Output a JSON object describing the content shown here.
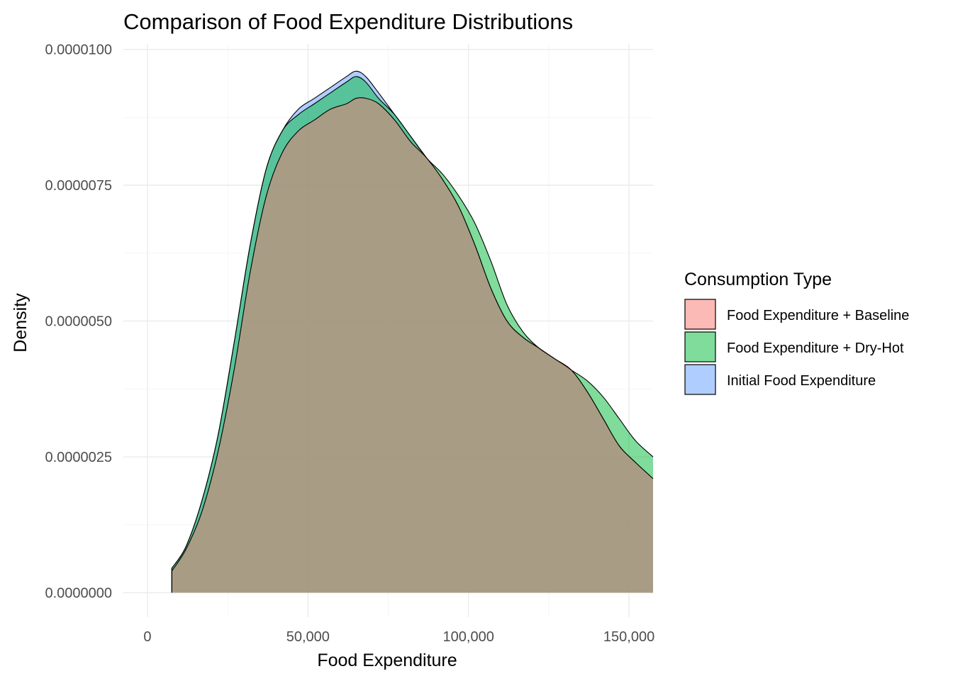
{
  "chart_data": {
    "type": "area",
    "subtype": "density",
    "title": "Comparison of Food Expenditure Distributions",
    "xlabel": "Food Expenditure",
    "ylabel": "Density",
    "xlim": [
      -7500,
      157500
    ],
    "ylim": [
      -4.5e-07,
      1.01e-05
    ],
    "x_ticks": [
      0,
      50000,
      100000,
      150000
    ],
    "x_tick_labels": [
      "0",
      "50,000",
      "100,000",
      "150,000"
    ],
    "y_ticks": [
      0,
      2.5e-06,
      5e-06,
      7.5e-06,
      1e-05
    ],
    "y_tick_labels": [
      "0.0000000",
      "0.0000025",
      "0.0000050",
      "0.0000075",
      "0.0000100"
    ],
    "grid": true,
    "legend": {
      "title": "Consumption Type",
      "position": "right"
    },
    "fill_opacity": 0.5,
    "series": [
      {
        "name": "Initial Food Expenditure",
        "color": "#619CFF",
        "x": [
          7600,
          12000,
          17000,
          22000,
          27000,
          32000,
          37000,
          42000,
          47000,
          52000,
          57000,
          62000,
          65000,
          68000,
          72000,
          77000,
          82000,
          87000,
          92000,
          97000,
          102000,
          107000,
          112000,
          117000,
          122000,
          127000,
          132000,
          137000,
          142000,
          147000,
          152000,
          157500
        ],
        "y": [
          4.5e-07,
          8.5e-07,
          1.7e-06,
          2.9e-06,
          4.6e-06,
          6.4e-06,
          7.8e-06,
          8.5e-06,
          8.9e-06,
          9.1e-06,
          9.3e-06,
          9.5e-06,
          9.6e-06,
          9.5e-06,
          9.2e-06,
          8.8e-06,
          8.4e-06,
          8e-06,
          7.6e-06,
          7.1e-06,
          6.4e-06,
          5.6e-06,
          5e-06,
          4.7e-06,
          4.5e-06,
          4.3e-06,
          4.1e-06,
          3.7e-06,
          3.2e-06,
          2.7e-06,
          2.4e-06,
          2.1e-06
        ]
      },
      {
        "name": "Food Expenditure + Dry-Hot",
        "color": "#00BA38",
        "x": [
          7600,
          12000,
          17000,
          22000,
          27000,
          32000,
          37000,
          42000,
          47000,
          52000,
          57000,
          62000,
          65000,
          68000,
          72000,
          77000,
          82000,
          87000,
          92000,
          97000,
          102000,
          107000,
          112000,
          117000,
          122000,
          127000,
          132000,
          137000,
          142000,
          147000,
          152000,
          157500
        ],
        "y": [
          4.5e-07,
          8.5e-07,
          1.7e-06,
          2.9e-06,
          4.6e-06,
          6.4e-06,
          7.8e-06,
          8.5e-06,
          8.8e-06,
          9e-06,
          9.2e-06,
          9.4e-06,
          9.5e-06,
          9.4e-06,
          9.1e-06,
          8.8e-06,
          8.4e-06,
          8e-06,
          7.7e-06,
          7.3e-06,
          6.8e-06,
          6.1e-06,
          5.3e-06,
          4.8e-06,
          4.5e-06,
          4.3e-06,
          4.1e-06,
          3.9e-06,
          3.6e-06,
          3.2e-06,
          2.8e-06,
          2.5e-06
        ]
      },
      {
        "name": "Food Expenditure + Baseline",
        "color": "#F8766D",
        "x": [
          7600,
          12000,
          17000,
          22000,
          27000,
          32000,
          37000,
          42000,
          47000,
          52000,
          57000,
          62000,
          65000,
          68000,
          72000,
          77000,
          82000,
          87000,
          92000,
          97000,
          102000,
          107000,
          112000,
          117000,
          122000,
          127000,
          132000,
          137000,
          142000,
          147000,
          152000,
          157500
        ],
        "y": [
          4e-07,
          8e-07,
          1.5e-06,
          2.6e-06,
          4.1e-06,
          5.9e-06,
          7.3e-06,
          8.1e-06,
          8.5e-06,
          8.7e-06,
          8.9e-06,
          9e-06,
          9.1e-06,
          9.1e-06,
          9e-06,
          8.7e-06,
          8.3e-06,
          8e-06,
          7.6e-06,
          7.1e-06,
          6.4e-06,
          5.6e-06,
          5e-06,
          4.7e-06,
          4.5e-06,
          4.3e-06,
          4.1e-06,
          3.7e-06,
          3.2e-06,
          2.7e-06,
          2.4e-06,
          2.1e-06
        ]
      }
    ],
    "legend_order": [
      "Food Expenditure + Baseline",
      "Food Expenditure + Dry-Hot",
      "Initial Food Expenditure"
    ]
  }
}
